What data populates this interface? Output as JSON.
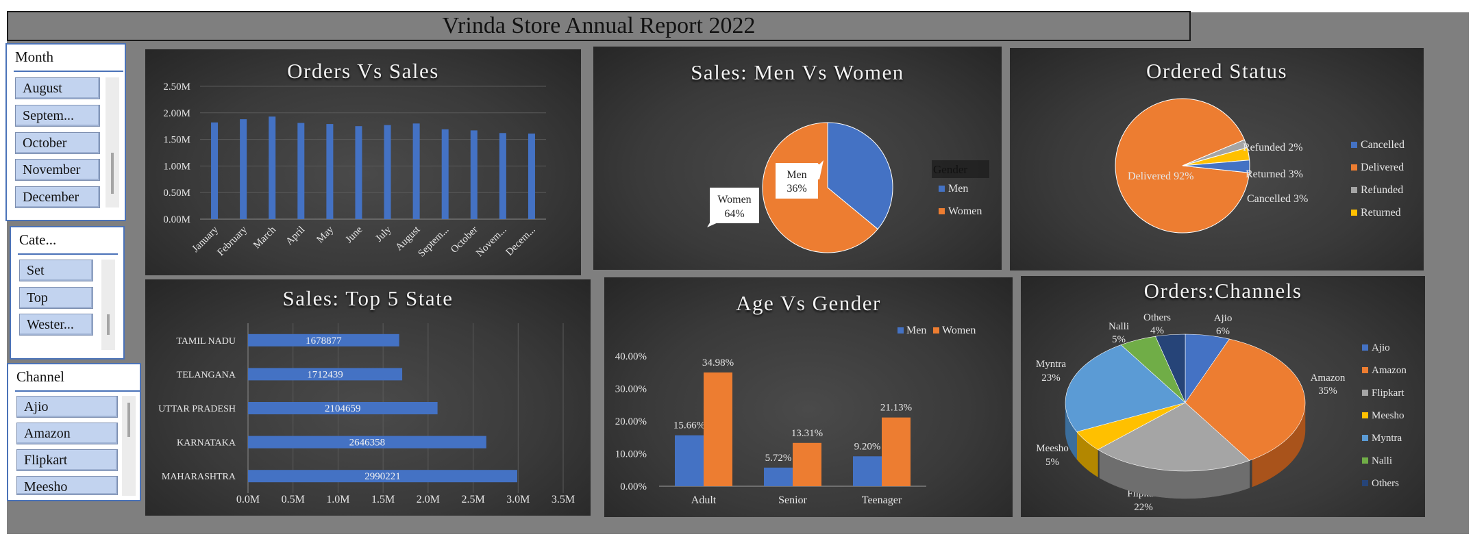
{
  "report_title": "Vrinda Store Annual Report 2022",
  "colors": {
    "blue": "#4472c4",
    "orange": "#ed7d31",
    "gray": "#a5a5a5",
    "yellow": "#ffc000",
    "lightblue": "#5b9bd5",
    "green": "#70ad47",
    "navy": "#264478"
  },
  "slicers": [
    {
      "title": "Month",
      "items": [
        "August",
        "Septem...",
        "October",
        "November",
        "December"
      ]
    },
    {
      "title": "Cate...",
      "items": [
        "Set",
        "Top",
        "Wester..."
      ]
    },
    {
      "title": "Channel",
      "items": [
        "Ajio",
        "Amazon",
        "Flipkart",
        "Meesho"
      ]
    }
  ],
  "charts": {
    "orders_vs_sales": {
      "title": "Orders Vs Sales"
    },
    "men_vs_women": {
      "title": "Sales: Men Vs Women",
      "legend_title": "Gender",
      "legend": [
        "Men",
        "Women"
      ],
      "labels": [
        {
          "name": "Men",
          "pct": "36%"
        },
        {
          "name": "Women",
          "pct": "64%"
        }
      ]
    },
    "ordered_status": {
      "title": "Ordered Status",
      "legend": [
        "Cancelled",
        "Delivered",
        "Refunded",
        "Returned"
      ],
      "labels": [
        "Delivered 92%",
        "Refunded 2%",
        "Returned 3%",
        "Cancelled 3%"
      ]
    },
    "top5_state": {
      "title": "Sales: Top 5 State"
    },
    "age_vs_gender": {
      "title": "Age Vs Gender",
      "legend": [
        "Men",
        "Women"
      ]
    },
    "orders_channels": {
      "title": "Orders:Channels",
      "legend": [
        "Ajio",
        "Amazon",
        "Flipkart",
        "Meesho",
        "Myntra",
        "Nalli",
        "Others"
      ],
      "labels": [
        {
          "name": "Ajio",
          "pct": "6%"
        },
        {
          "name": "Amazon",
          "pct": "35%"
        },
        {
          "name": "Flipkart",
          "pct": "22%"
        },
        {
          "name": "Meesho",
          "pct": "5%"
        },
        {
          "name": "Myntra",
          "pct": "23%"
        },
        {
          "name": "Nalli",
          "pct": "5%"
        },
        {
          "name": "Others",
          "pct": "4%"
        }
      ]
    }
  },
  "chart_data": [
    {
      "type": "bar",
      "title": "Orders Vs Sales",
      "categories": [
        "January",
        "February",
        "March",
        "April",
        "May",
        "June",
        "July",
        "August",
        "Septem...",
        "October",
        "Novem...",
        "Decem..."
      ],
      "values": [
        1.82,
        1.88,
        1.93,
        1.81,
        1.79,
        1.75,
        1.77,
        1.8,
        1.69,
        1.67,
        1.62,
        1.61
      ],
      "ytick_labels": [
        "0.00M",
        "0.50M",
        "1.00M",
        "1.50M",
        "2.00M",
        "2.50M"
      ],
      "ylim": [
        0,
        2.5
      ],
      "grid": true
    },
    {
      "type": "pie",
      "title": "Sales: Men Vs Women",
      "categories": [
        "Men",
        "Women"
      ],
      "values": [
        36,
        64
      ],
      "legend_title": "Gender",
      "legend": "right"
    },
    {
      "type": "pie",
      "title": "Ordered Status",
      "categories": [
        "Cancelled",
        "Delivered",
        "Refunded",
        "Returned"
      ],
      "values": [
        3,
        92,
        2,
        3
      ],
      "legend": "right"
    },
    {
      "type": "bar",
      "title": "Sales: Top 5 State",
      "orientation": "horizontal",
      "categories": [
        "TAMIL NADU",
        "TELANGANA",
        "UTTAR PRADESH",
        "KARNATAKA",
        "MAHARASHTRA"
      ],
      "values": [
        1678877,
        1712439,
        2104659,
        2646358,
        2990221
      ],
      "xtick_labels": [
        "0.0M",
        "0.5M",
        "1.0M",
        "1.5M",
        "2.0M",
        "2.5M",
        "3.0M",
        "3.5M"
      ],
      "xlim": [
        0,
        3500000
      ],
      "grid": true
    },
    {
      "type": "bar",
      "title": "Age Vs Gender",
      "categories": [
        "Adult",
        "Senior",
        "Teenager"
      ],
      "series": [
        {
          "name": "Men",
          "values": [
            15.66,
            5.72,
            9.2
          ],
          "labels": [
            "15.66%",
            "5.72%",
            "9.20%"
          ]
        },
        {
          "name": "Women",
          "values": [
            34.98,
            13.31,
            21.13
          ],
          "labels": [
            "34.98%",
            "13.31%",
            "21.13%"
          ]
        }
      ],
      "ytick_labels": [
        "0.00%",
        "10.00%",
        "20.00%",
        "30.00%",
        "40.00%"
      ],
      "ylim": [
        0,
        40
      ],
      "legend": "top-right"
    },
    {
      "type": "pie",
      "title": "Orders:Channels",
      "style": "3d",
      "categories": [
        "Ajio",
        "Amazon",
        "Flipkart",
        "Meesho",
        "Myntra",
        "Nalli",
        "Others"
      ],
      "values": [
        6,
        35,
        22,
        5,
        23,
        5,
        4
      ],
      "legend": "right"
    }
  ]
}
